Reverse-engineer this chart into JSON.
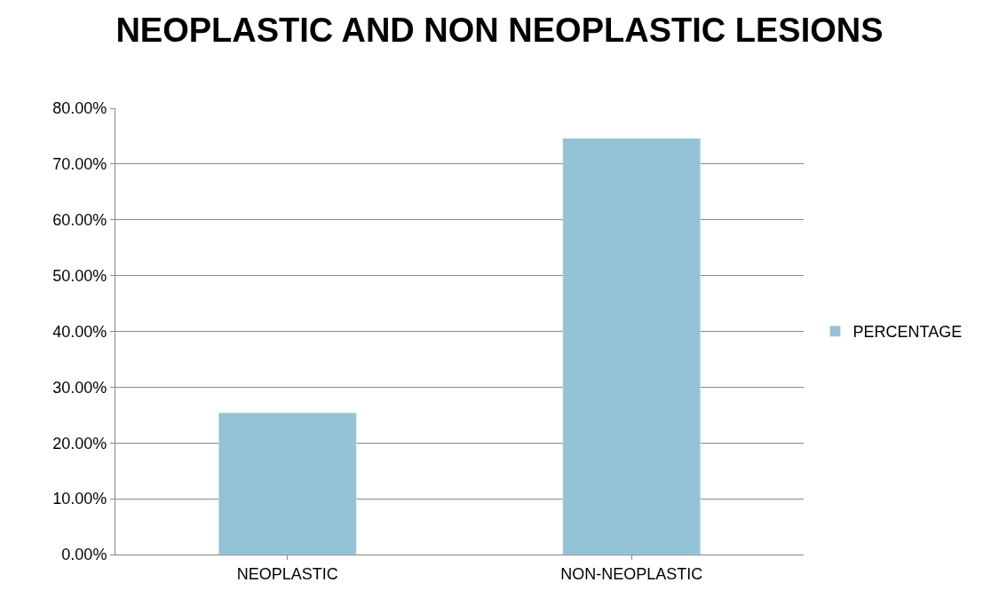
{
  "chart_data": {
    "type": "bar",
    "title": "NEOPLASTIC AND NON NEOPLASTIC LESIONS",
    "categories": [
      "NEOPLASTIC",
      "NON-NEOPLASTIC"
    ],
    "series": [
      {
        "name": "PERCENTAGE",
        "color": "#93c3d5",
        "values": [
          25.4,
          74.6
        ]
      }
    ],
    "ylim": [
      0,
      80
    ],
    "yticks": [
      {
        "value": 0,
        "label": "0.00%"
      },
      {
        "value": 10,
        "label": "10.00%"
      },
      {
        "value": 20,
        "label": "20.00%"
      },
      {
        "value": 30,
        "label": "30.00%"
      },
      {
        "value": 40,
        "label": "40.00%"
      },
      {
        "value": 50,
        "label": "50.00%"
      },
      {
        "value": 60,
        "label": "60.00%"
      },
      {
        "value": 70,
        "label": "70.00%"
      },
      {
        "value": 80,
        "label": "80.00%"
      }
    ],
    "grid": "y",
    "legend": "right"
  }
}
